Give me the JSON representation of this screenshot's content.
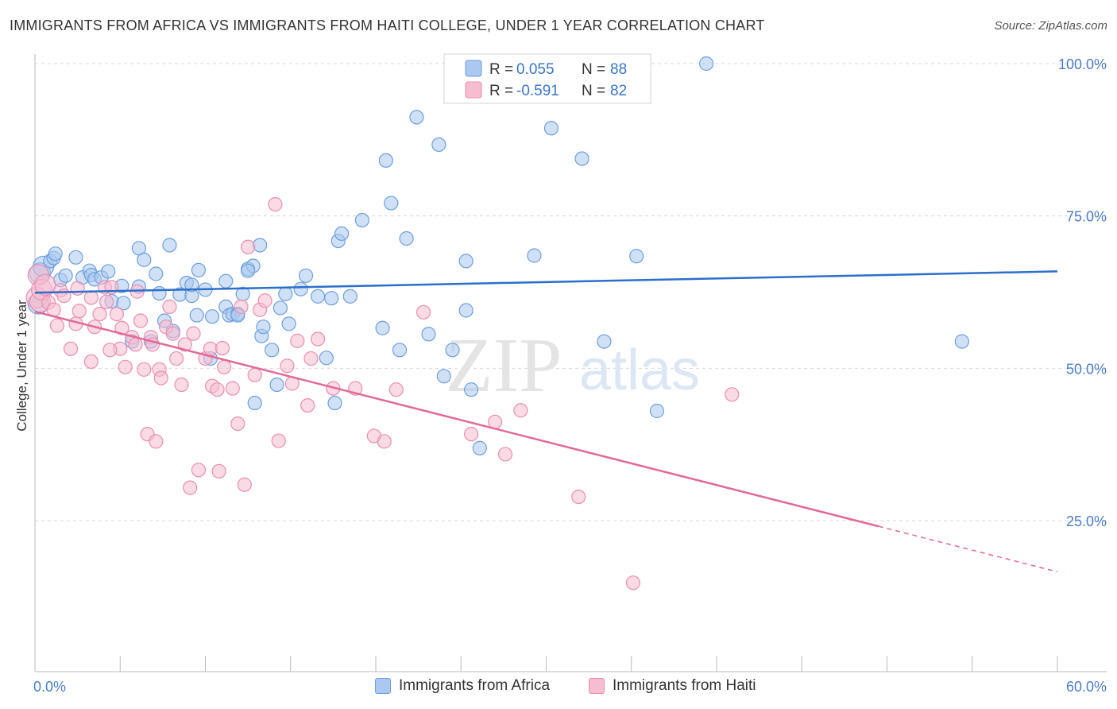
{
  "title": "IMMIGRANTS FROM AFRICA VS IMMIGRANTS FROM HAITI COLLEGE, UNDER 1 YEAR CORRELATION CHART",
  "source": "Source: ZipAtlas.com",
  "watermark": {
    "zip": "ZIP",
    "atlas": "atlas"
  },
  "colors": {
    "africa_fill": "#aac8f0",
    "africa_stroke": "#6f9fdc",
    "africa_line": "#2b6fca",
    "haiti_fill": "#f6bcd0",
    "haiti_stroke": "#ea8fb0",
    "haiti_line": "#e06a98",
    "axis_text": "#4a7cc8",
    "grid": "#d8d8d8"
  },
  "legend_top": [
    {
      "r_label": "R =",
      "r_value": "0.055",
      "n_label": "N =",
      "n_value": "88"
    },
    {
      "r_label": "R =",
      "r_value": "-0.591",
      "n_label": "N =",
      "n_value": "82"
    }
  ],
  "legend_bottom": [
    "Immigrants from Africa",
    "Immigrants from Haiti"
  ],
  "chart_data": {
    "type": "scatter",
    "title": "IMMIGRANTS FROM AFRICA VS IMMIGRANTS FROM HAITI COLLEGE, UNDER 1 YEAR CORRELATION CHART",
    "xlabel": "",
    "ylabel": "College, Under 1 year",
    "xlim": [
      0,
      60
    ],
    "ylim": [
      3,
      102
    ],
    "x_tick_labels": [
      "0.0%",
      "60.0%"
    ],
    "y_ticks": [
      25,
      50,
      75,
      100
    ],
    "y_tick_labels": [
      "25.0%",
      "50.0%",
      "75.0%",
      "100.0%"
    ],
    "grid": true,
    "legend_position": "top-center",
    "series": [
      {
        "name": "Immigrants from Africa",
        "R": 0.055,
        "N": 88,
        "trend": {
          "x": [
            0,
            60
          ],
          "y": [
            62.4,
            65.9
          ],
          "dashed_from_x": null
        },
        "points": [
          [
            0.2,
            60.6
          ],
          [
            0.3,
            65.6
          ],
          [
            0.5,
            66.7
          ],
          [
            0.9,
            67.6
          ],
          [
            1.1,
            68.1
          ],
          [
            1.2,
            68.8
          ],
          [
            1.5,
            64.5
          ],
          [
            1.8,
            65.2
          ],
          [
            2.4,
            68.2
          ],
          [
            2.8,
            64.9
          ],
          [
            3.2,
            66.0
          ],
          [
            3.3,
            65.3
          ],
          [
            3.5,
            64.6
          ],
          [
            3.9,
            64.9
          ],
          [
            4.3,
            65.9
          ],
          [
            4.5,
            61.0
          ],
          [
            5.2,
            60.7
          ],
          [
            5.1,
            63.5
          ],
          [
            5.7,
            54.4
          ],
          [
            6.1,
            69.7
          ],
          [
            6.1,
            63.4
          ],
          [
            6.4,
            67.8
          ],
          [
            6.8,
            54.4
          ],
          [
            7.1,
            65.5
          ],
          [
            7.3,
            62.3
          ],
          [
            7.6,
            57.8
          ],
          [
            7.9,
            70.2
          ],
          [
            8.1,
            56.1
          ],
          [
            8.5,
            62.1
          ],
          [
            8.9,
            64.0
          ],
          [
            9.2,
            61.9
          ],
          [
            9.5,
            58.7
          ],
          [
            9.6,
            66.1
          ],
          [
            10.0,
            62.9
          ],
          [
            10.3,
            51.6
          ],
          [
            10.4,
            58.5
          ],
          [
            11.2,
            60.1
          ],
          [
            11.2,
            64.3
          ],
          [
            11.4,
            58.7
          ],
          [
            11.6,
            58.9
          ],
          [
            11.9,
            58.9
          ],
          [
            11.9,
            58.7
          ],
          [
            12.2,
            62.2
          ],
          [
            12.5,
            66.3
          ],
          [
            12.8,
            66.8
          ],
          [
            12.9,
            44.3
          ],
          [
            13.2,
            70.2
          ],
          [
            13.3,
            55.3
          ],
          [
            13.4,
            56.8
          ],
          [
            13.9,
            53.0
          ],
          [
            14.2,
            47.3
          ],
          [
            14.4,
            59.9
          ],
          [
            14.7,
            62.2
          ],
          [
            14.9,
            57.3
          ],
          [
            15.6,
            63.0
          ],
          [
            15.9,
            65.2
          ],
          [
            16.6,
            61.8
          ],
          [
            17.1,
            51.7
          ],
          [
            17.4,
            61.5
          ],
          [
            17.6,
            44.3
          ],
          [
            17.8,
            70.9
          ],
          [
            18.0,
            72.1
          ],
          [
            18.5,
            61.8
          ],
          [
            19.2,
            74.3
          ],
          [
            20.4,
            56.6
          ],
          [
            20.6,
            84.1
          ],
          [
            20.9,
            77.1
          ],
          [
            21.8,
            71.3
          ],
          [
            21.4,
            53.0
          ],
          [
            22.4,
            91.2
          ],
          [
            23.1,
            55.6
          ],
          [
            23.7,
            86.7
          ],
          [
            24.0,
            48.7
          ],
          [
            24.5,
            53.0
          ],
          [
            25.3,
            59.5
          ],
          [
            25.3,
            67.6
          ],
          [
            25.6,
            46.5
          ],
          [
            26.1,
            36.9
          ],
          [
            29.3,
            68.5
          ],
          [
            30.3,
            89.4
          ],
          [
            32.1,
            84.4
          ],
          [
            33.4,
            54.4
          ],
          [
            35.3,
            68.4
          ],
          [
            36.5,
            43.0
          ],
          [
            39.4,
            100.0
          ],
          [
            54.4,
            54.4
          ],
          [
            12.5,
            66.0
          ],
          [
            9.2,
            63.7
          ]
        ]
      },
      {
        "name": "Immigrants from Haiti",
        "R": -0.591,
        "N": 82,
        "trend": {
          "x": [
            0,
            60
          ],
          "y": [
            59.3,
            16.6
          ],
          "dashed_from_x": 49.5
        },
        "points": [
          [
            0.1,
            61.6
          ],
          [
            0.2,
            65.3
          ],
          [
            0.3,
            60.9
          ],
          [
            0.4,
            62.9
          ],
          [
            0.6,
            63.7
          ],
          [
            0.8,
            60.8
          ],
          [
            1.1,
            59.6
          ],
          [
            1.3,
            57.0
          ],
          [
            1.5,
            62.8
          ],
          [
            1.7,
            61.9
          ],
          [
            2.1,
            53.2
          ],
          [
            2.4,
            57.3
          ],
          [
            2.5,
            63.1
          ],
          [
            2.6,
            59.4
          ],
          [
            3.3,
            51.1
          ],
          [
            3.3,
            61.6
          ],
          [
            3.5,
            56.8
          ],
          [
            3.8,
            58.9
          ],
          [
            4.1,
            63.3
          ],
          [
            4.2,
            60.9
          ],
          [
            4.5,
            63.3
          ],
          [
            4.8,
            58.9
          ],
          [
            5.0,
            53.2
          ],
          [
            5.1,
            56.6
          ],
          [
            5.3,
            50.2
          ],
          [
            5.7,
            55.1
          ],
          [
            5.9,
            53.9
          ],
          [
            6.0,
            62.6
          ],
          [
            6.2,
            57.8
          ],
          [
            6.4,
            49.8
          ],
          [
            6.6,
            39.2
          ],
          [
            6.8,
            55.1
          ],
          [
            6.9,
            53.9
          ],
          [
            7.1,
            38.0
          ],
          [
            7.3,
            49.8
          ],
          [
            7.4,
            48.4
          ],
          [
            7.7,
            56.8
          ],
          [
            7.9,
            60.1
          ],
          [
            8.1,
            55.7
          ],
          [
            8.3,
            51.6
          ],
          [
            8.6,
            47.3
          ],
          [
            8.8,
            53.9
          ],
          [
            9.1,
            30.4
          ],
          [
            9.3,
            55.7
          ],
          [
            9.6,
            33.3
          ],
          [
            10.0,
            51.6
          ],
          [
            10.3,
            53.2
          ],
          [
            10.4,
            47.1
          ],
          [
            10.7,
            46.5
          ],
          [
            10.8,
            33.1
          ],
          [
            11.0,
            53.3
          ],
          [
            11.1,
            50.2
          ],
          [
            11.6,
            46.7
          ],
          [
            11.9,
            40.9
          ],
          [
            12.1,
            60.1
          ],
          [
            12.3,
            30.9
          ],
          [
            12.5,
            69.9
          ],
          [
            12.9,
            48.9
          ],
          [
            13.2,
            59.6
          ],
          [
            13.5,
            61.1
          ],
          [
            14.1,
            76.9
          ],
          [
            14.3,
            38.1
          ],
          [
            14.8,
            50.4
          ],
          [
            15.1,
            47.5
          ],
          [
            15.4,
            54.5
          ],
          [
            16.0,
            43.9
          ],
          [
            16.2,
            51.6
          ],
          [
            16.6,
            54.8
          ],
          [
            17.5,
            46.7
          ],
          [
            18.8,
            46.7
          ],
          [
            19.9,
            38.9
          ],
          [
            20.5,
            38.0
          ],
          [
            21.2,
            46.5
          ],
          [
            22.8,
            59.2
          ],
          [
            25.6,
            39.2
          ],
          [
            27.0,
            41.2
          ],
          [
            27.6,
            35.9
          ],
          [
            28.5,
            43.1
          ],
          [
            31.9,
            28.9
          ],
          [
            35.1,
            14.8
          ],
          [
            40.9,
            45.7
          ],
          [
            4.4,
            53.0
          ]
        ]
      }
    ]
  }
}
